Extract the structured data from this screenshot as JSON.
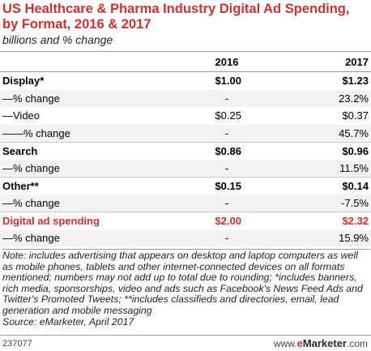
{
  "chart_data": {
    "type": "table",
    "title": "US Healthcare & Pharma Industry Digital Ad Spending, by Format, 2016 & 2017",
    "subtitle": "billions and % change",
    "columns": [
      "",
      "2016",
      "2017"
    ],
    "rows": [
      {
        "label": "Display*",
        "v2016": "$1.00",
        "v2017": "$1.23",
        "style": "bold"
      },
      {
        "label": "—% change",
        "v2016": "-",
        "v2017": "23.2%",
        "style": "shaded"
      },
      {
        "label": "—Video",
        "v2016": "$0.25",
        "v2017": "$0.37",
        "style": "plain"
      },
      {
        "label": "——% change",
        "v2016": "-",
        "v2017": "45.7%",
        "style": "shaded"
      },
      {
        "label": "Search",
        "v2016": "$0.86",
        "v2017": "$0.96",
        "style": "bold"
      },
      {
        "label": "—% change",
        "v2016": "-",
        "v2017": "11.5%",
        "style": "shaded"
      },
      {
        "label": "Other**",
        "v2016": "$0.15",
        "v2017": "$0.14",
        "style": "bold"
      },
      {
        "label": "—% change",
        "v2016": "-",
        "v2017": "-7.5%",
        "style": "shaded"
      },
      {
        "label": "Digital ad spending",
        "v2016": "$2.00",
        "v2017": "$2.32",
        "style": "total"
      },
      {
        "label": "—% change",
        "v2016": "-",
        "v2017": "15.9%",
        "style": "shaded"
      }
    ],
    "note": "Note: includes advertising that appears on desktop and laptop computers as well as mobile phones, tablets and other internet-connected devices on all formats mentioned; numbers may not add up to total due to rounding; *includes banners, rich media, sponsorships, video and ads such as Facebook's News Feed Ads and Twitter's Promoted Tweets; **includes classifieds and directories, email, lead generation and mobile messaging",
    "source": "Source: eMarketer, April 2017",
    "chart_id": "237077",
    "brand": {
      "prefix": "www.",
      "e": "e",
      "name": "Marketer",
      "suffix": ".com"
    },
    "colors": {
      "accent": "#d0312f",
      "shade": "#f2f2f2"
    }
  }
}
